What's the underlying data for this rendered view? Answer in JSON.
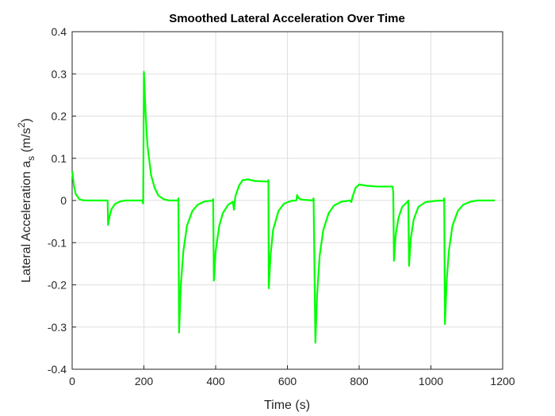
{
  "chart_data": {
    "type": "line",
    "title": "Smoothed Lateral Acceleration Over Time",
    "xlabel": "Time (s)",
    "ylabel_parts": [
      "Lateral Acceleration a",
      "s",
      " (m/s",
      "2",
      ")"
    ],
    "xlim": [
      0,
      1200
    ],
    "xticks": [
      0,
      200,
      400,
      600,
      800,
      1000,
      1200
    ],
    "ylim": [
      -0.4,
      0.4
    ],
    "yticks": [
      -0.4,
      -0.3,
      -0.2,
      -0.1,
      0,
      0.1,
      0.2,
      0.3,
      0.4
    ],
    "grid": true,
    "series": [
      {
        "color": "#00ff00",
        "x": [
          0,
          5,
          10,
          20,
          30,
          40,
          98,
          99,
          100,
          105,
          110,
          120,
          135,
          150,
          195,
          198,
          200,
          205,
          210,
          220,
          230,
          240,
          255,
          270,
          295,
          296,
          298,
          303,
          310,
          320,
          335,
          350,
          370,
          392,
          393,
          395,
          400,
          410,
          420,
          435,
          448,
          451,
          455,
          465,
          475,
          490,
          510,
          545,
          547,
          548,
          553,
          560,
          575,
          590,
          610,
          625,
          627,
          632,
          640,
          670,
          673,
          678,
          683,
          690,
          700,
          715,
          730,
          750,
          775,
          778,
          782,
          790,
          800,
          820,
          850,
          893,
          895,
          897,
          902,
          910,
          920,
          935,
          937,
          939,
          944,
          952,
          965,
          985,
          1010,
          1035,
          1037,
          1039,
          1044,
          1050,
          1060,
          1075,
          1090,
          1110,
          1130,
          1178
        ],
        "values": [
          0.07,
          0.035,
          0.015,
          0.003,
          0.0005,
          0,
          0,
          -0.002,
          -0.058,
          -0.035,
          -0.02,
          -0.008,
          -0.002,
          0,
          0,
          -0.007,
          0.305,
          0.2,
          0.13,
          0.06,
          0.03,
          0.012,
          0.003,
          0,
          0,
          0.005,
          -0.313,
          -0.2,
          -0.12,
          -0.06,
          -0.025,
          -0.01,
          -0.002,
          0,
          0.003,
          -0.19,
          -0.12,
          -0.06,
          -0.03,
          -0.01,
          -0.003,
          -0.022,
          0.01,
          0.035,
          0.048,
          0.05,
          0.046,
          0.045,
          0.048,
          -0.208,
          -0.13,
          -0.07,
          -0.025,
          -0.008,
          -0.001,
          0,
          0.013,
          0.005,
          0.002,
          0,
          0.005,
          -0.337,
          -0.22,
          -0.13,
          -0.07,
          -0.03,
          -0.012,
          -0.003,
          0,
          -0.004,
          0.01,
          0.03,
          0.038,
          0.035,
          0.033,
          0.033,
          0.02,
          -0.143,
          -0.08,
          -0.04,
          -0.015,
          -0.003,
          0,
          -0.155,
          -0.09,
          -0.045,
          -0.015,
          -0.004,
          -0.001,
          0,
          0.005,
          -0.293,
          -0.19,
          -0.12,
          -0.06,
          -0.025,
          -0.01,
          -0.003,
          0,
          0
        ]
      }
    ]
  }
}
